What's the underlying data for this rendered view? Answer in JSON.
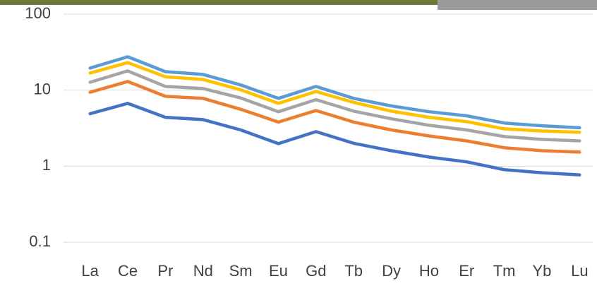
{
  "chart_data": {
    "type": "line",
    "yscale": "log",
    "grid": true,
    "categories": [
      "La",
      "Ce",
      "Pr",
      "Nd",
      "Sm",
      "Eu",
      "Gd",
      "Tb",
      "Dy",
      "Ho",
      "Er",
      "Tm",
      "Yb",
      "Lu"
    ],
    "series": [
      {
        "color": "#4472c4",
        "values": [
          4.9,
          6.7,
          4.4,
          4.1,
          3.0,
          1.98,
          2.85,
          2.0,
          1.6,
          1.32,
          1.14,
          0.9,
          0.82,
          0.77
        ]
      },
      {
        "color": "#ed7d31",
        "values": [
          9.4,
          13,
          8.3,
          7.8,
          5.6,
          3.8,
          5.4,
          3.8,
          3.0,
          2.5,
          2.15,
          1.75,
          1.6,
          1.53
        ]
      },
      {
        "color": "#a5a5a5",
        "values": [
          12.7,
          17.9,
          11.2,
          10.5,
          7.9,
          5.2,
          7.5,
          5.3,
          4.2,
          3.45,
          3.0,
          2.45,
          2.25,
          2.15
        ]
      },
      {
        "color": "#ffc000",
        "values": [
          16.8,
          23,
          15,
          13.8,
          10.1,
          6.7,
          9.6,
          6.9,
          5.3,
          4.4,
          3.85,
          3.1,
          2.9,
          2.8
        ]
      },
      {
        "color": "#5b9bd5",
        "values": [
          19.5,
          27.5,
          17.5,
          16.1,
          11.7,
          7.8,
          11.2,
          7.8,
          6.2,
          5.2,
          4.6,
          3.7,
          3.4,
          3.2
        ]
      }
    ],
    "ylim": [
      0.1,
      100
    ],
    "yticks": [
      0.1,
      1,
      10,
      100
    ]
  }
}
